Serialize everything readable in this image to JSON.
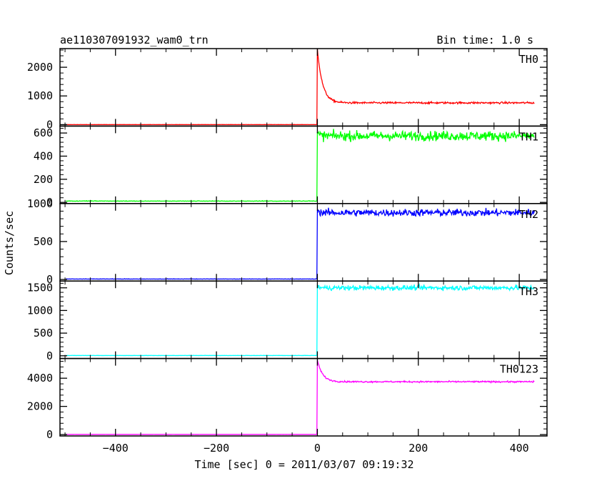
{
  "chart_data": {
    "type": "line",
    "title": "ae110307091932_wam0_trn",
    "bin_time_label": "Bin time: 1.0 s",
    "xlabel": "Time [sec] 0 = 2011/03/07 09:19:32",
    "ylabel": "Counts/sec",
    "xlim": [
      -510,
      455
    ],
    "x_ticks": [
      -400,
      -200,
      0,
      200,
      400
    ],
    "x_tick_labels": [
      "−400",
      "−200",
      "0",
      "200",
      "400"
    ],
    "data_x_range": [
      -498,
      430
    ],
    "panels": [
      {
        "name": "TH0",
        "color": "#ff0000",
        "ylim": [
          -50,
          2650
        ],
        "y_ticks": [
          0,
          1000,
          2000
        ],
        "y_tick_labels": [
          "0",
          "1000",
          "2000"
        ],
        "pre_level": 0,
        "peak": 2650,
        "post_level": 760,
        "noise": 28,
        "decay_s": 10
      },
      {
        "name": "TH1",
        "color": "#00ff00",
        "ylim": [
          -10,
          660
        ],
        "y_ticks": [
          0,
          200,
          400,
          600
        ],
        "y_tick_labels": [
          "0",
          "200",
          "400",
          "600"
        ],
        "pre_level": 10,
        "peak": 600,
        "post_level": 575,
        "noise": 35,
        "decay_s": 3
      },
      {
        "name": "TH2",
        "color": "#0000ff",
        "ylim": [
          -20,
          1000
        ],
        "y_ticks": [
          0,
          500,
          1000
        ],
        "y_tick_labels": [
          "0",
          "500",
          "1000"
        ],
        "pre_level": 5,
        "peak": 920,
        "post_level": 880,
        "noise": 40,
        "decay_s": 3
      },
      {
        "name": "TH3",
        "color": "#00ffff",
        "ylim": [
          -60,
          1650
        ],
        "y_ticks": [
          0,
          500,
          1000,
          1500
        ],
        "y_tick_labels": [
          "0",
          "500",
          "1000",
          "1500"
        ],
        "pre_level": 5,
        "peak": 1560,
        "post_level": 1500,
        "noise": 45,
        "decay_s": 3
      },
      {
        "name": "TH0123",
        "color": "#ff00ff",
        "ylim": [
          -100,
          5400
        ],
        "y_ticks": [
          0,
          2000,
          4000
        ],
        "y_tick_labels": [
          "0",
          "2000",
          "4000"
        ],
        "pre_level": 10,
        "peak": 5300,
        "post_level": 3750,
        "noise": 45,
        "decay_s": 10
      }
    ]
  }
}
